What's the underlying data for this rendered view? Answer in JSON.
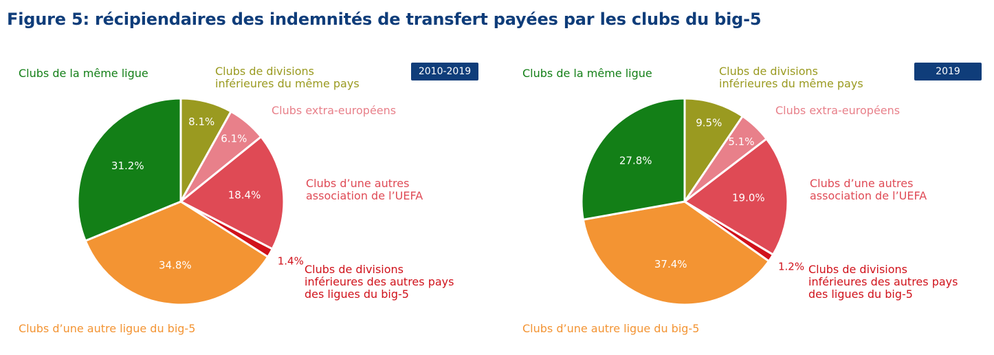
{
  "title": "Figure 5: récipiendaires des indemnités de transfert payées par les clubs du big-5",
  "colors": {
    "same_league": "#137f17",
    "lower_same_country": "#9a9a20",
    "extra_european": "#e8808a",
    "other_uefa": "#df4a55",
    "lower_other_big5": "#d0121b",
    "other_big5_league": "#f39433",
    "badge": "#0f3d7a",
    "title": "#0f3d7a"
  },
  "chart_data": [
    {
      "type": "pie",
      "title": "2010-2019",
      "start": "12 o'clock, clockwise",
      "slices": [
        {
          "key": "lower_same_country",
          "label": "Clubs de divisions inférieures du même pays",
          "value": 8.1,
          "value_label": "8.1%"
        },
        {
          "key": "extra_european",
          "label": "Clubs extra-européens",
          "value": 6.1,
          "value_label": "6.1%"
        },
        {
          "key": "other_uefa",
          "label": "Clubs d’une autres association de l’UEFA",
          "value": 18.4,
          "value_label": "18.4%"
        },
        {
          "key": "lower_other_big5",
          "label": "Clubs de divisions inférieures des autres pays des ligues du big-5",
          "value": 1.4,
          "value_label": "1.4%"
        },
        {
          "key": "other_big5_league",
          "label": "Clubs d’une autre ligue du big-5",
          "value": 34.8,
          "value_label": "34.8%"
        },
        {
          "key": "same_league",
          "label": "Clubs de la même ligue",
          "value": 31.2,
          "value_label": "31.2%"
        }
      ]
    },
    {
      "type": "pie",
      "title": "2019",
      "start": "12 o'clock, clockwise",
      "slices": [
        {
          "key": "lower_same_country",
          "label": "Clubs de divisions inférieures du même pays",
          "value": 9.5,
          "value_label": "9.5%"
        },
        {
          "key": "extra_european",
          "label": "Clubs extra-européens",
          "value": 5.1,
          "value_label": "5.1%"
        },
        {
          "key": "other_uefa",
          "label": "Clubs d’une autres association de l’UEFA",
          "value": 19.0,
          "value_label": "19.0%"
        },
        {
          "key": "lower_other_big5",
          "label": "Clubs de divisions inférieures des autres pays des ligues du big-5",
          "value": 1.2,
          "value_label": "1.2%"
        },
        {
          "key": "other_big5_league",
          "label": "Clubs d’une autre ligue du big-5",
          "value": 37.4,
          "value_label": "37.4%"
        },
        {
          "key": "same_league",
          "label": "Clubs de la même ligue",
          "value": 27.8,
          "value_label": "27.8%"
        }
      ]
    }
  ],
  "legend_labels": {
    "same_league": [
      "Clubs de la même ligue"
    ],
    "lower_same_country": [
      "Clubs de divisions",
      "inférieures du même pays"
    ],
    "extra_european": [
      "Clubs extra-européens"
    ],
    "other_uefa": [
      "Clubs d’une autres",
      "association de l’UEFA"
    ],
    "lower_other_big5": [
      "Clubs de divisions",
      "inférieures des autres pays",
      "des ligues du big-5"
    ],
    "other_big5_league": [
      "Clubs d’une autre ligue du big-5"
    ]
  }
}
